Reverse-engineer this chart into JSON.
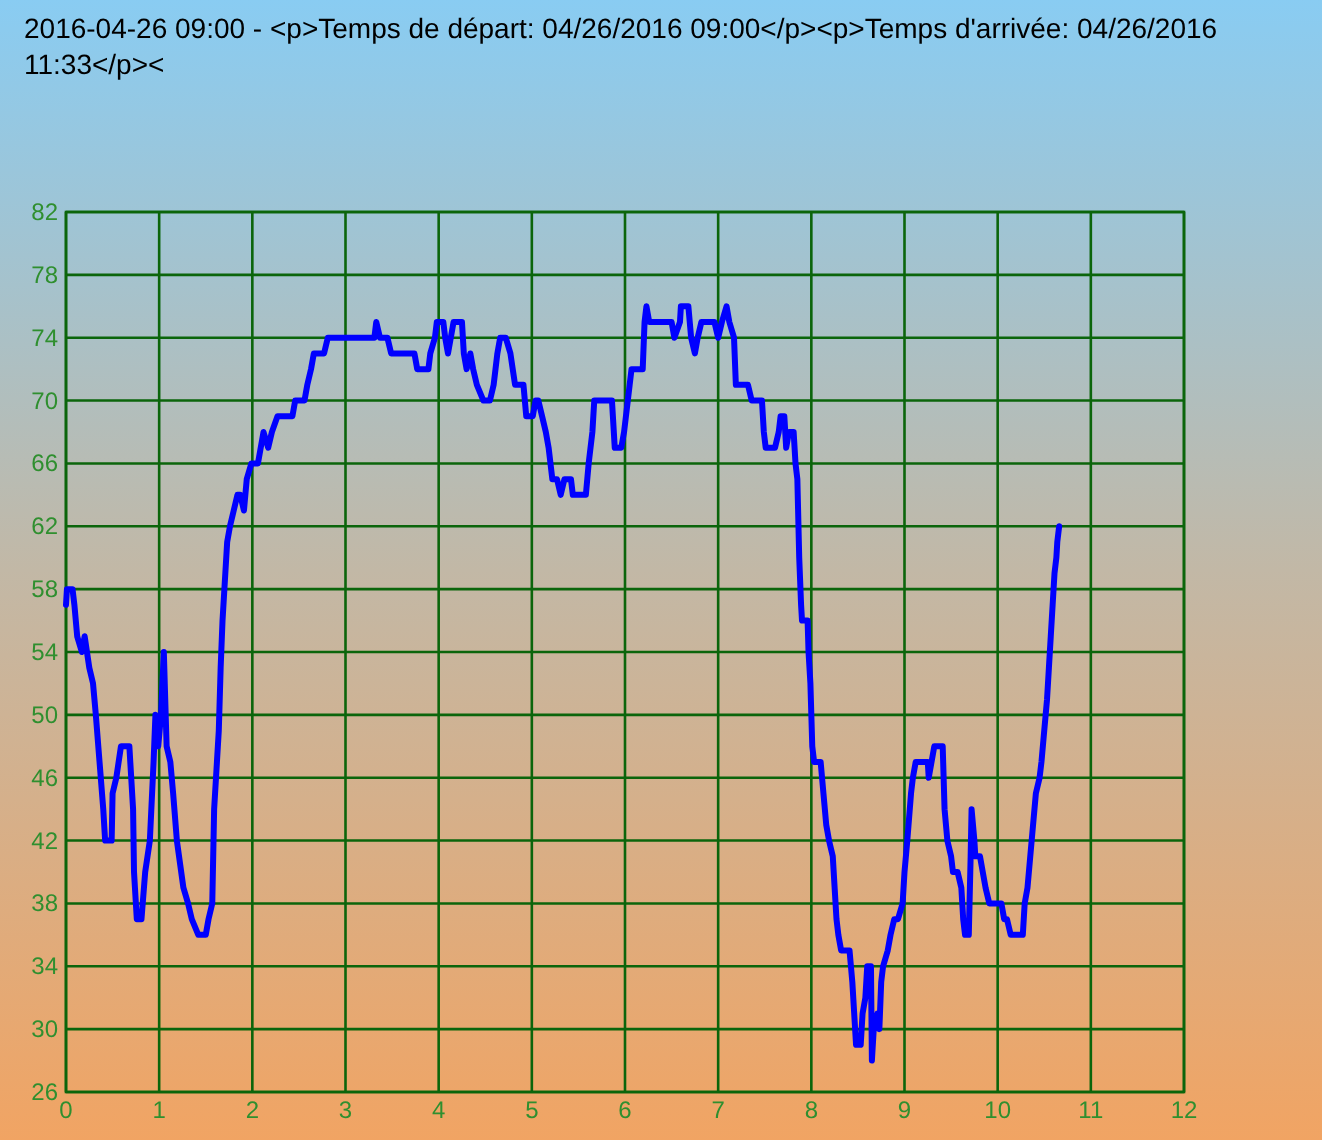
{
  "chart_data": {
    "type": "line",
    "title": "2016-04-26 09:00 - <p>Temps de départ: 04/26/2016 09:00</p><p>Temps d'arrivée: 04/26/2016 11:33</p><",
    "x": [
      0,
      0.01,
      0.07,
      0.09,
      0.12,
      0.17,
      0.2,
      0.25,
      0.29,
      0.32,
      0.36,
      0.4,
      0.42,
      0.49,
      0.5,
      0.54,
      0.59,
      0.68,
      0.72,
      0.73,
      0.76,
      0.81,
      0.85,
      0.9,
      0.94,
      0.96,
      0.99,
      1.02,
      1.05,
      1.08,
      1.12,
      1.15,
      1.19,
      1.26,
      1.31,
      1.35,
      1.42,
      1.5,
      1.53,
      1.57,
      1.59,
      1.62,
      1.64,
      1.66,
      1.68,
      1.71,
      1.73,
      1.76,
      1.8,
      1.84,
      1.87,
      1.91,
      1.94,
      1.99,
      2.06,
      2.09,
      2.12,
      2.17,
      2.21,
      2.27,
      2.43,
      2.46,
      2.56,
      2.59,
      2.63,
      2.66,
      2.77,
      2.81,
      3.31,
      3.33,
      3.37,
      3.45,
      3.49,
      3.74,
      3.77,
      3.89,
      3.91,
      3.96,
      3.98,
      4.05,
      4.07,
      4.1,
      4.13,
      4.16,
      4.25,
      4.27,
      4.3,
      4.34,
      4.37,
      4.41,
      4.48,
      4.55,
      4.59,
      4.63,
      4.66,
      4.72,
      4.77,
      4.82,
      4.91,
      4.94,
      5.01,
      5.04,
      5.07,
      5.11,
      5.15,
      5.18,
      5.22,
      5.27,
      5.31,
      5.35,
      5.42,
      5.44,
      5.58,
      5.61,
      5.65,
      5.67,
      5.86,
      5.87,
      5.89,
      5.96,
      5.99,
      6.03,
      6.05,
      6.07,
      6.19,
      6.21,
      6.23,
      6.26,
      6.5,
      6.53,
      6.59,
      6.6,
      6.68,
      6.71,
      6.75,
      6.78,
      6.82,
      6.96,
      7,
      7.04,
      7.09,
      7.12,
      7.17,
      7.19,
      7.32,
      7.36,
      7.47,
      7.49,
      7.51,
      7.61,
      7.65,
      7.67,
      7.71,
      7.73,
      7.76,
      7.81,
      7.83,
      7.85,
      7.87,
      7.89,
      7.9,
      7.96,
      7.97,
      7.99,
      8.01,
      8.03,
      8.1,
      8.13,
      8.16,
      8.19,
      8.23,
      8.27,
      8.29,
      8.32,
      8.41,
      8.44,
      8.46,
      8.48,
      8.53,
      8.55,
      8.58,
      8.6,
      8.64,
      8.65,
      8.67,
      8.71,
      8.73,
      8.75,
      8.77,
      8.82,
      8.85,
      8.89,
      8.93,
      8.98,
      9,
      9.03,
      9.07,
      9.09,
      9.12,
      9.25,
      9.26,
      9.29,
      9.32,
      9.41,
      9.43,
      9.46,
      9.5,
      9.52,
      9.57,
      9.61,
      9.63,
      9.65,
      9.69,
      9.71,
      9.72,
      9.75,
      9.76,
      9.81,
      9.84,
      9.87,
      9.91,
      10.04,
      10.07,
      10.1,
      10.14,
      10.27,
      10.29,
      10.32,
      10.35,
      10.38,
      10.41,
      10.45,
      10.47,
      10.5,
      10.53,
      10.55,
      10.57,
      10.59,
      10.61,
      10.63,
      10.64,
      10.66
    ],
    "values": [
      57,
      58,
      58,
      57,
      55,
      54,
      55,
      53,
      52,
      50,
      47,
      44,
      42,
      42,
      45,
      46,
      48,
      48,
      44,
      40,
      37,
      37,
      40,
      42,
      47,
      50,
      48,
      50,
      54,
      48,
      47,
      45,
      42,
      39,
      38,
      37,
      36,
      36,
      37,
      38,
      44,
      47,
      49,
      53,
      56,
      59,
      61,
      62,
      63,
      64,
      64,
      63,
      65,
      66,
      66,
      67,
      68,
      67,
      68,
      69,
      69,
      70,
      70,
      71,
      72,
      73,
      73,
      74,
      74,
      75,
      74,
      74,
      73,
      73,
      72,
      72,
      73,
      74,
      75,
      75,
      74,
      73,
      74,
      75,
      75,
      73,
      72,
      73,
      72,
      71,
      70,
      70,
      71,
      73,
      74,
      74,
      73,
      71,
      71,
      69,
      69,
      70,
      70,
      69,
      68,
      67,
      65,
      65,
      64,
      65,
      65,
      64,
      64,
      66,
      68,
      70,
      70,
      69,
      67,
      67,
      68,
      70,
      71,
      72,
      72,
      75,
      76,
      75,
      75,
      74,
      75,
      76,
      76,
      74,
      73,
      74,
      75,
      75,
      74,
      75,
      76,
      75,
      74,
      71,
      71,
      70,
      70,
      68,
      67,
      67,
      68,
      69,
      69,
      67,
      68,
      68,
      66,
      65,
      60,
      57,
      56,
      56,
      54,
      52,
      48,
      47,
      47,
      45,
      43,
      42,
      41,
      37,
      36,
      35,
      35,
      33,
      31,
      29,
      29,
      31,
      32,
      34,
      34,
      28,
      30,
      31,
      30,
      33,
      34,
      35,
      36,
      37,
      37,
      38,
      40,
      42,
      45,
      46,
      47,
      47,
      46,
      47,
      48,
      48,
      44,
      42,
      41,
      40,
      40,
      39,
      37,
      36,
      36,
      41,
      44,
      42,
      41,
      41,
      40,
      39,
      38,
      38,
      37,
      37,
      36,
      36,
      38,
      39,
      41,
      43,
      45,
      46,
      47,
      49,
      51,
      53,
      55,
      57,
      59,
      60,
      61,
      62
    ],
    "color": "#0000ff",
    "xlim": [
      0,
      12
    ],
    "ylim": [
      26,
      82
    ],
    "xticks": [
      0,
      1,
      2,
      3,
      4,
      5,
      6,
      7,
      8,
      9,
      10,
      11,
      12
    ],
    "yticks": [
      26,
      30,
      34,
      38,
      42,
      46,
      50,
      54,
      58,
      62,
      66,
      70,
      74,
      78,
      82
    ],
    "grid": true
  }
}
